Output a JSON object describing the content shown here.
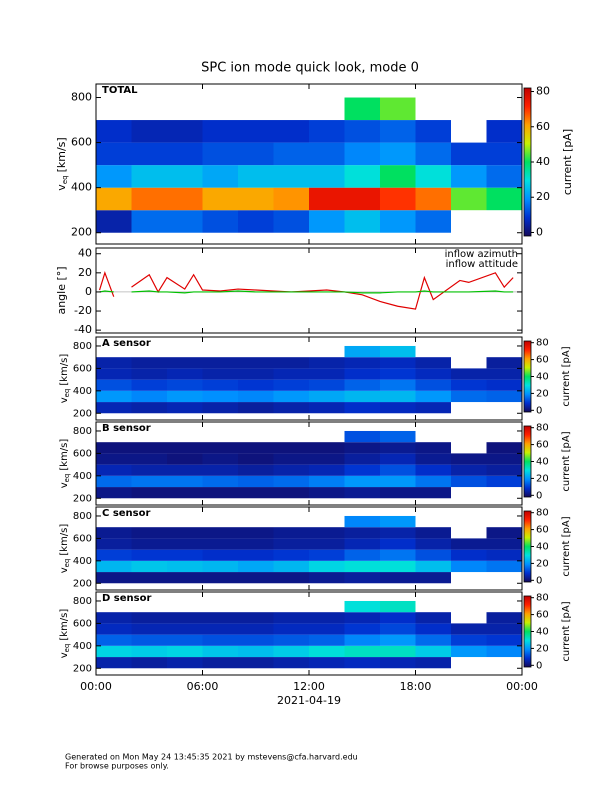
{
  "title": "SPC ion mode quick look, mode 0",
  "footer": [
    "Generated on Mon May 24 13:45:35 2021 by mstevens@cfa.harvard.edu",
    "For browse purposes only."
  ],
  "chart_data": [
    {
      "type": "spectrogram",
      "label": "TOTAL",
      "ylabel": "v",
      "ylabel_sub": "eq",
      "ylabel_unit": "[km/s]",
      "xlim": [
        0,
        24
      ],
      "ylim": [
        150,
        860
      ],
      "yticks": [
        200,
        400,
        600,
        800
      ],
      "bins": [
        0,
        2,
        4,
        6,
        8,
        10,
        12,
        14,
        16,
        18,
        20,
        22,
        24
      ],
      "vbins": [
        200,
        300,
        400,
        500,
        600,
        700,
        800
      ],
      "values": [
        [
          5,
          60,
          20,
          10,
          8,
          null
        ],
        [
          15,
          65,
          25,
          10,
          6,
          null
        ],
        [
          15,
          65,
          25,
          10,
          6,
          null
        ],
        [
          12,
          60,
          22,
          12,
          8,
          null
        ],
        [
          10,
          60,
          25,
          12,
          8,
          null
        ],
        [
          12,
          62,
          25,
          14,
          8,
          null
        ],
        [
          20,
          75,
          25,
          14,
          10,
          null
        ],
        [
          25,
          75,
          30,
          18,
          12,
          40
        ],
        [
          20,
          70,
          40,
          20,
          14,
          45
        ],
        [
          15,
          65,
          30,
          15,
          10,
          null
        ],
        [
          null,
          45,
          20,
          10,
          null,
          null
        ],
        [
          null,
          40,
          15,
          10,
          8,
          null
        ]
      ],
      "clim": [
        -2,
        82
      ],
      "cticks": [
        0,
        20,
        40,
        60,
        80
      ],
      "clabel": "current [pA]",
      "colors": [
        "#14085a",
        "#0030d0",
        "#0090ff",
        "#00e0e0",
        "#00e060",
        "#c8f000",
        "#ffa000",
        "#ff2000",
        "#c00000"
      ]
    },
    {
      "type": "line",
      "ylabel": "angle [°]",
      "xlim": [
        0,
        24
      ],
      "ylim": [
        -43,
        46
      ],
      "yticks": [
        -40,
        -20,
        0,
        20,
        40
      ],
      "x": [
        0.2,
        0.5,
        1.0,
        1.2,
        2,
        3,
        3.5,
        4,
        5,
        5.5,
        6,
        7,
        8,
        9,
        10,
        11,
        12,
        13,
        14,
        15,
        16,
        17,
        18,
        18.5,
        19,
        20.5,
        21,
        22.5,
        23,
        23.5
      ],
      "series": [
        {
          "name": "inflow azimuth",
          "color": "#e00000",
          "values": [
            2,
            20,
            -5,
            null,
            5,
            18,
            0,
            15,
            3,
            18,
            2,
            1,
            3,
            2,
            1,
            0,
            1,
            2,
            0,
            -3,
            -10,
            -15,
            -18,
            15,
            -8,
            12,
            10,
            20,
            5,
            15
          ]
        },
        {
          "name": "inflow attitude",
          "color": "#00c000",
          "values": [
            0,
            1,
            0,
            null,
            0,
            1,
            0,
            0,
            -1,
            0,
            0,
            0,
            1,
            0,
            0,
            0,
            0,
            0,
            0,
            -1,
            -1,
            0,
            0,
            1,
            0,
            0,
            0,
            1,
            0,
            0
          ]
        }
      ]
    },
    {
      "type": "spectrogram",
      "label": "A sensor",
      "ylabel": "v",
      "ylabel_sub": "eq",
      "ylabel_unit": "[km/s]",
      "xlim": [
        0,
        24
      ],
      "ylim": [
        140,
        880
      ],
      "yticks": [
        200,
        400,
        600,
        800
      ],
      "bins": [
        0,
        2,
        4,
        6,
        8,
        10,
        12,
        14,
        16,
        18,
        20,
        22,
        24
      ],
      "vbins": [
        200,
        300,
        400,
        500,
        600,
        700,
        800
      ],
      "values": [
        [
          6,
          20,
          12,
          6,
          5,
          null
        ],
        [
          5,
          18,
          10,
          5,
          4,
          null
        ],
        [
          6,
          20,
          11,
          6,
          4,
          null
        ],
        [
          5,
          19,
          10,
          5,
          4,
          null
        ],
        [
          4,
          18,
          9,
          5,
          4,
          null
        ],
        [
          5,
          20,
          10,
          6,
          4,
          null
        ],
        [
          6,
          22,
          11,
          6,
          5,
          null
        ],
        [
          8,
          24,
          14,
          8,
          6,
          22
        ],
        [
          7,
          24,
          16,
          9,
          7,
          25
        ],
        [
          6,
          20,
          12,
          7,
          5,
          null
        ],
        [
          null,
          15,
          9,
          5,
          null,
          null
        ],
        [
          null,
          14,
          8,
          5,
          4,
          null
        ]
      ],
      "clim": [
        -2,
        82
      ],
      "cticks": [
        0,
        20,
        40,
        60,
        80
      ],
      "clabel": "current [pA]",
      "colors": [
        "#14085a",
        "#0030d0",
        "#0090ff",
        "#00e0e0",
        "#00e060",
        "#c8f000",
        "#ffa000",
        "#ff2000",
        "#c00000"
      ]
    },
    {
      "type": "spectrogram",
      "label": "B sensor",
      "ylabel": "v",
      "ylabel_sub": "eq",
      "ylabel_unit": "[km/s]",
      "xlim": [
        0,
        24
      ],
      "ylim": [
        140,
        880
      ],
      "yticks": [
        200,
        400,
        600,
        800
      ],
      "bins": [
        0,
        2,
        4,
        6,
        8,
        10,
        12,
        14,
        16,
        18,
        20,
        22,
        24
      ],
      "vbins": [
        200,
        300,
        400,
        500,
        600,
        700,
        800
      ],
      "values": [
        [
          2,
          15,
          6,
          2,
          1,
          null
        ],
        [
          1,
          16,
          5,
          2,
          1,
          null
        ],
        [
          1,
          16,
          5,
          1,
          1,
          null
        ],
        [
          1,
          15,
          5,
          2,
          1,
          null
        ],
        [
          1,
          14,
          4,
          1,
          1,
          null
        ],
        [
          1,
          15,
          5,
          2,
          1,
          null
        ],
        [
          2,
          17,
          6,
          2,
          1,
          null
        ],
        [
          3,
          20,
          9,
          4,
          2,
          12
        ],
        [
          2,
          20,
          12,
          6,
          3,
          14
        ],
        [
          2,
          16,
          8,
          3,
          2,
          null
        ],
        [
          null,
          12,
          5,
          2,
          null,
          null
        ],
        [
          null,
          10,
          4,
          2,
          1,
          null
        ]
      ],
      "clim": [
        -2,
        82
      ],
      "cticks": [
        0,
        20,
        40,
        60,
        80
      ],
      "clabel": "current [pA]",
      "colors": [
        "#14085a",
        "#0030d0",
        "#0090ff",
        "#00e0e0",
        "#00e060",
        "#c8f000",
        "#ffa000",
        "#ff2000",
        "#c00000"
      ]
    },
    {
      "type": "spectrogram",
      "label": "C sensor",
      "ylabel": "v",
      "ylabel_sub": "eq",
      "ylabel_unit": "[km/s]",
      "xlim": [
        0,
        24
      ],
      "ylim": [
        140,
        880
      ],
      "yticks": [
        200,
        400,
        600,
        800
      ],
      "bins": [
        0,
        2,
        4,
        6,
        8,
        10,
        12,
        14,
        16,
        18,
        20,
        22,
        24
      ],
      "vbins": [
        200,
        300,
        400,
        500,
        600,
        700,
        800
      ],
      "values": [
        [
          2,
          24,
          10,
          4,
          3,
          null
        ],
        [
          2,
          26,
          9,
          3,
          2,
          null
        ],
        [
          2,
          25,
          9,
          3,
          2,
          null
        ],
        [
          2,
          24,
          8,
          3,
          2,
          null
        ],
        [
          2,
          22,
          8,
          3,
          2,
          null
        ],
        [
          2,
          24,
          9,
          4,
          3,
          null
        ],
        [
          3,
          28,
          10,
          4,
          3,
          null
        ],
        [
          4,
          30,
          14,
          6,
          4,
          18
        ],
        [
          3,
          30,
          16,
          8,
          5,
          20
        ],
        [
          3,
          25,
          12,
          5,
          3,
          null
        ],
        [
          null,
          18,
          8,
          3,
          null,
          null
        ],
        [
          null,
          16,
          7,
          3,
          2,
          null
        ]
      ],
      "clim": [
        -2,
        82
      ],
      "cticks": [
        0,
        20,
        40,
        60,
        80
      ],
      "clabel": "current [pA]",
      "colors": [
        "#14085a",
        "#0030d0",
        "#0090ff",
        "#00e0e0",
        "#00e060",
        "#c8f000",
        "#ffa000",
        "#ff2000",
        "#c00000"
      ]
    },
    {
      "type": "spectrogram",
      "label": "D sensor",
      "ylabel": "v",
      "ylabel_sub": "eq",
      "ylabel_unit": "[km/s]",
      "xlim": [
        0,
        24
      ],
      "ylim": [
        140,
        880
      ],
      "yticks": [
        200,
        400,
        600,
        800
      ],
      "bins": [
        0,
        2,
        4,
        6,
        8,
        10,
        12,
        14,
        16,
        18,
        20,
        22,
        24
      ],
      "vbins": [
        200,
        300,
        400,
        500,
        600,
        700,
        800
      ],
      "values": [
        [
          5,
          28,
          14,
          7,
          5,
          null
        ],
        [
          4,
          27,
          13,
          6,
          4,
          null
        ],
        [
          5,
          28,
          13,
          6,
          4,
          null
        ],
        [
          4,
          26,
          12,
          6,
          4,
          null
        ],
        [
          4,
          25,
          12,
          6,
          4,
          null
        ],
        [
          5,
          27,
          13,
          7,
          5,
          null
        ],
        [
          6,
          30,
          14,
          7,
          5,
          null
        ],
        [
          7,
          32,
          18,
          9,
          6,
          30
        ],
        [
          6,
          32,
          20,
          11,
          8,
          32
        ],
        [
          5,
          27,
          15,
          8,
          5,
          null
        ],
        [
          null,
          20,
          10,
          5,
          null,
          null
        ],
        [
          null,
          18,
          9,
          5,
          4,
          null
        ]
      ],
      "clim": [
        -2,
        82
      ],
      "cticks": [
        0,
        20,
        40,
        60,
        80
      ],
      "clabel": "current [pA]",
      "colors": [
        "#14085a",
        "#0030d0",
        "#0090ff",
        "#00e0e0",
        "#00e060",
        "#c8f000",
        "#ffa000",
        "#ff2000",
        "#c00000"
      ],
      "xticks": [
        {
          "value": 0,
          "label": "00:00"
        },
        {
          "value": 6,
          "label": "06:00"
        },
        {
          "value": 12,
          "label": "12:00"
        },
        {
          "value": 18,
          "label": "18:00"
        },
        {
          "value": 24,
          "label": "00:00"
        }
      ],
      "xlabel": "2021-04-19"
    }
  ]
}
